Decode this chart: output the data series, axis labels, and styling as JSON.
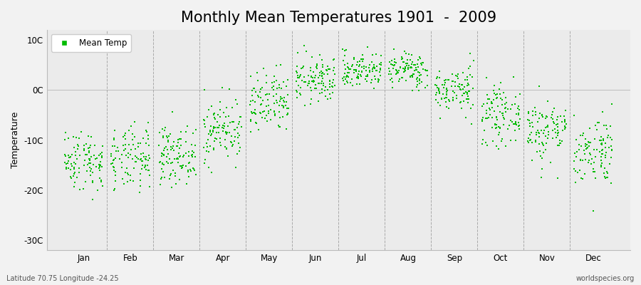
{
  "title": "Monthly Mean Temperatures 1901  -  2009",
  "ylabel": "Temperature",
  "xlabel_labels": [
    "Jan",
    "Feb",
    "Mar",
    "Apr",
    "May",
    "Jun",
    "Jul",
    "Aug",
    "Sep",
    "Oct",
    "Nov",
    "Dec"
  ],
  "ytick_labels": [
    "10C",
    "0C",
    "-10C",
    "-20C",
    "-30C"
  ],
  "ytick_values": [
    10,
    0,
    -10,
    -20,
    -30
  ],
  "ylim": [
    -32,
    12
  ],
  "marker_color": "#00BB00",
  "background_color": "#f2f2f2",
  "plot_bg_color": "#ebebeb",
  "grid_color": "#999999",
  "footer_left": "Latitude 70.75 Longitude -24.25",
  "footer_right": "worldspecies.org",
  "legend_label": "Mean Temp",
  "title_fontsize": 15,
  "label_fontsize": 9,
  "tick_fontsize": 8.5,
  "monthly_means": [
    -14,
    -14,
    -13,
    -8,
    -3,
    2,
    4,
    4,
    0,
    -5,
    -8,
    -12
  ],
  "monthly_stds": [
    3.0,
    3.2,
    2.8,
    3.2,
    3.2,
    2.3,
    1.8,
    1.8,
    2.3,
    2.8,
    3.2,
    3.5
  ],
  "n_years": 109,
  "seed": 42,
  "marker_size": 3,
  "xlim": [
    -0.3,
    12.3
  ]
}
